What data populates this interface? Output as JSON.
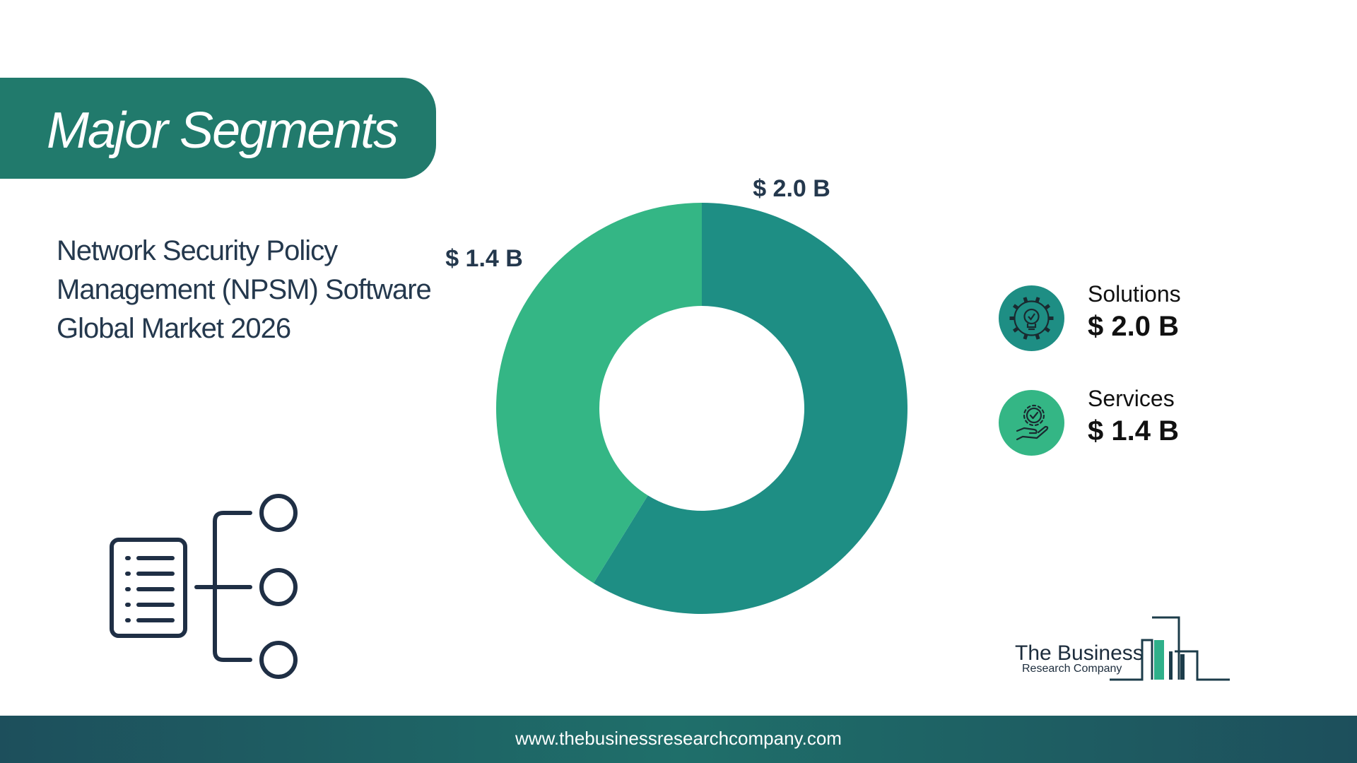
{
  "header": {
    "title": "Major Segments"
  },
  "subtitle": "Network Security Policy Management (NPSM) Software Global Market 2026",
  "chart_data": {
    "type": "pie",
    "title": "Major Segments",
    "categories": [
      "Solutions",
      "Services"
    ],
    "values": [
      2.0,
      1.4
    ],
    "unit": "$ B",
    "data_labels": [
      "$ 2.0 B",
      "$ 1.4 B"
    ],
    "colors": [
      "#1e8e84",
      "#34b685"
    ],
    "legend_placement": "right"
  },
  "legend": [
    {
      "name": "Solutions",
      "value": "$ 2.0 B",
      "color": "#1e8e84",
      "icon": "gear-lightbulb-icon"
    },
    {
      "name": "Services",
      "value": "$ 1.4 B",
      "color": "#34b685",
      "icon": "hand-gear-icon"
    }
  ],
  "logo": {
    "line1": "The Business",
    "line2": "Research Company"
  },
  "footer": {
    "url": "www.thebusinessresearchcompany.com"
  }
}
